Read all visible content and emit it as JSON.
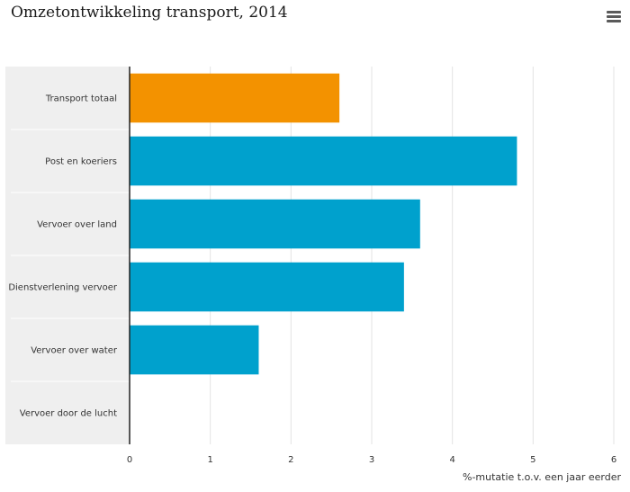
{
  "header": {
    "menu_icon": "hamburger-menu-icon"
  },
  "chart_data": {
    "type": "bar",
    "orientation": "horizontal",
    "title": "Omzetontwikkeling transport, 2014",
    "xlabel": "%-mutatie t.o.v. een jaar eerder",
    "ylabel": "",
    "categories": [
      "Transport totaal",
      "Post en koeriers",
      "Vervoer over land",
      "Dienstverlening vervoer",
      "Vervoer over water",
      "Vervoer door de lucht"
    ],
    "values": [
      2.6,
      4.8,
      3.6,
      3.4,
      1.6,
      0
    ],
    "highlight_index": 0,
    "xlim": [
      0,
      6
    ],
    "xticks": [
      "0",
      "1",
      "2",
      "3",
      "4",
      "5",
      "6"
    ],
    "grid": true,
    "colors": {
      "highlight": "#f39200",
      "default": "#00a1cd",
      "category_band": "#efefef",
      "grid": "#e3e3e3",
      "axis": "#222222"
    }
  }
}
